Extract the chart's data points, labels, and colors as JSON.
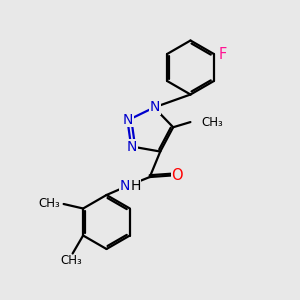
{
  "bg_color": "#e8e8e8",
  "bond_color": "#000000",
  "N_color": "#0000cc",
  "O_color": "#ff0000",
  "F_color": "#ff1493",
  "line_width": 1.6,
  "font_size": 10,
  "label_font_size": 9,
  "dbo": 0.055,
  "xlim": [
    0,
    10
  ],
  "ylim": [
    0,
    10
  ]
}
